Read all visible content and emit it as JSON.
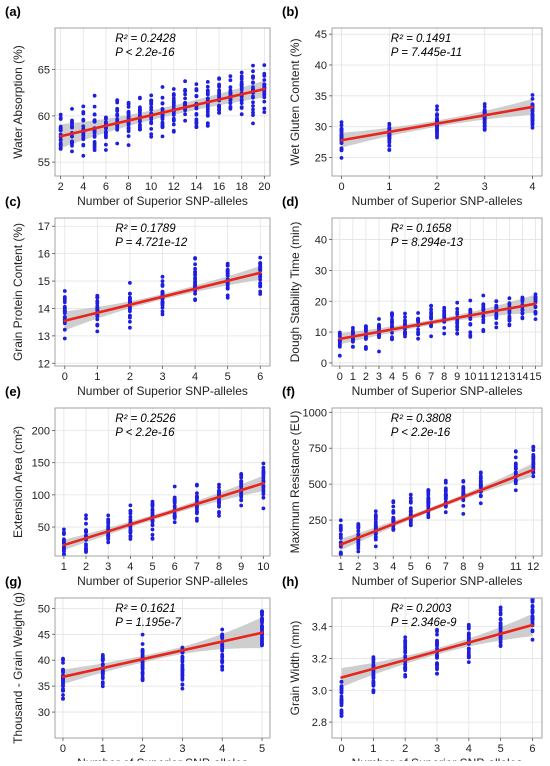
{
  "chart_data": [
    {
      "type": "scatter",
      "panel_label": "(a)",
      "ylabel": "Water Absorption (%)",
      "xlabel": "Number of Superior SNP-alleles",
      "xlim": [
        1.5,
        20.5
      ],
      "ylim": [
        53.5,
        69.5
      ],
      "xticks": [
        2,
        4,
        6,
        8,
        10,
        12,
        14,
        16,
        18,
        20
      ],
      "yticks": [
        55,
        60,
        65
      ],
      "stat_r2": "R² = 0.2428",
      "stat_p": "P < 2.2e-16",
      "fit": {
        "x": [
          2,
          20
        ],
        "y": [
          57.8,
          62.9
        ]
      },
      "band": [
        1.3,
        0.5,
        0.9
      ],
      "points": {
        "xs": [
          2,
          3,
          4,
          5,
          6,
          7,
          8,
          9,
          10,
          11,
          12,
          13,
          14,
          15,
          16,
          17,
          18,
          19,
          20
        ],
        "centers": [
          57.8,
          58.1,
          58.4,
          58.7,
          59.0,
          59.3,
          59.5,
          59.8,
          60.1,
          60.4,
          60.7,
          61.0,
          61.2,
          61.5,
          61.8,
          62.1,
          62.4,
          62.6,
          62.9
        ],
        "spread": 3.8,
        "count": 22,
        "seed": 11
      }
    },
    {
      "type": "scatter",
      "panel_label": "(b)",
      "ylabel": "Wet Gluten Content (%)",
      "xlabel": "Number of Superior SNP-alleles",
      "xlim": [
        -0.2,
        4.2
      ],
      "ylim": [
        22,
        46
      ],
      "xticks": [
        0,
        1,
        2,
        3,
        4
      ],
      "yticks": [
        25,
        30,
        35,
        40,
        45
      ],
      "stat_r2": "R² = 0.1491",
      "stat_p": "P = 7.445e-11",
      "fit": {
        "x": [
          0,
          4
        ],
        "y": [
          27.8,
          33.2
        ]
      },
      "band": [
        1.2,
        0.5,
        1.3
      ],
      "points": {
        "xs": [
          0,
          1,
          2,
          3,
          4
        ],
        "centers": [
          28.0,
          29.0,
          30.3,
          31.6,
          32.8
        ],
        "spread": 4.0,
        "count": 34,
        "seed": 23
      }
    },
    {
      "type": "scatter",
      "panel_label": "(c)",
      "ylabel": "Grain Protein Content (%)",
      "xlabel": "Number of Superior SNP-alleles",
      "xlim": [
        -0.3,
        6.3
      ],
      "ylim": [
        11.9,
        17.3
      ],
      "xticks": [
        0,
        1,
        2,
        3,
        4,
        5,
        6
      ],
      "yticks": [
        12,
        13,
        14,
        15,
        16,
        17
      ],
      "stat_r2": "R² = 0.1789",
      "stat_p": "P = 4.721e-12",
      "fit": {
        "x": [
          0,
          6
        ],
        "y": [
          13.55,
          15.3
        ]
      },
      "band": [
        0.35,
        0.1,
        0.25
      ],
      "points": {
        "xs": [
          0,
          1,
          2,
          3,
          4,
          5,
          6
        ],
        "centers": [
          13.7,
          14.0,
          14.2,
          14.5,
          14.9,
          15.1,
          15.4
        ],
        "spread": 1.2,
        "count": 26,
        "seed": 37
      }
    },
    {
      "type": "scatter",
      "panel_label": "(d)",
      "ylabel": "Dough Stability Time (min)",
      "xlabel": "Number of Superior SNP-alleles",
      "xlim": [
        -0.6,
        15.5
      ],
      "ylim": [
        -1,
        47
      ],
      "xticks": [
        0,
        1,
        2,
        3,
        4,
        5,
        6,
        7,
        8,
        9,
        10,
        11,
        12,
        13,
        14,
        15
      ],
      "yticks": [
        0,
        10,
        20,
        30,
        40
      ],
      "stat_r2": "R² = 0.1658",
      "stat_p": "P = 8.294e-13",
      "fit": {
        "x": [
          0,
          15
        ],
        "y": [
          7.8,
          19.2
        ]
      },
      "band": [
        1.8,
        0.8,
        3.0
      ],
      "points": {
        "xs": [
          0,
          1,
          2,
          3,
          4,
          5,
          6,
          7,
          8,
          9,
          10,
          11,
          12,
          13,
          14,
          15
        ],
        "centers": [
          7,
          8,
          9,
          10,
          11,
          12,
          12,
          13,
          14,
          14,
          15,
          16,
          16,
          17,
          18,
          19
        ],
        "spread": 8.0,
        "count": 16,
        "seed": 41
      }
    },
    {
      "type": "scatter",
      "panel_label": "(e)",
      "ylabel": "Extension Area (cm²)",
      "xlabel": "Number of Superior SNP-alleles",
      "xlim": [
        0.6,
        10.3
      ],
      "ylim": [
        5,
        235
      ],
      "xticks": [
        1,
        2,
        3,
        4,
        5,
        6,
        7,
        8,
        9,
        10
      ],
      "yticks": [
        50,
        100,
        150,
        200
      ],
      "stat_r2": "R² = 0.2526",
      "stat_p": "P < 2.2e-16",
      "fit": {
        "x": [
          1,
          10
        ],
        "y": [
          22,
          118
        ]
      },
      "band": [
        8,
        4,
        12
      ],
      "points": {
        "xs": [
          1,
          2,
          3,
          4,
          5,
          6,
          7,
          8,
          9,
          10
        ],
        "centers": [
          25,
          35,
          45,
          55,
          65,
          75,
          85,
          95,
          110,
          118
        ],
        "spread": 45,
        "count": 22,
        "seed": 53
      }
    },
    {
      "type": "scatter",
      "panel_label": "(f)",
      "ylabel": "Maximum Resistance (EU)",
      "xlabel": "Number of Superior SNP-alleles",
      "xlim": [
        0.5,
        12.5
      ],
      "ylim": [
        0,
        1030
      ],
      "xticks": [
        1,
        2,
        3,
        4,
        5,
        6,
        7,
        8,
        9,
        11,
        12
      ],
      "xtick_pos": [
        1,
        2,
        3,
        4,
        5,
        6,
        7,
        8,
        9,
        11,
        12
      ],
      "yticks": [
        250,
        500,
        750,
        1000
      ],
      "stat_r2": "R² = 0.3808",
      "stat_p": "P < 2.2e-16",
      "fit": {
        "x": [
          1,
          12
        ],
        "y": [
          80,
          600
        ]
      },
      "band": [
        40,
        15,
        45
      ],
      "points": {
        "xs": [
          1,
          2,
          3,
          4,
          5,
          6,
          7,
          8,
          9,
          11,
          12
        ],
        "centers": [
          110,
          160,
          210,
          260,
          310,
          360,
          400,
          440,
          490,
          590,
          640
        ],
        "spread": 170,
        "count": 24,
        "seed": 67
      }
    },
    {
      "type": "scatter",
      "panel_label": "(g)",
      "ylabel": "Thousand - Grain Weight (g)",
      "xlabel": "Number of Superior SNP-alleles",
      "xlim": [
        -0.2,
        5.2
      ],
      "ylim": [
        25,
        52
      ],
      "xticks": [
        0,
        1,
        2,
        3,
        4,
        5
      ],
      "yticks": [
        30,
        35,
        40,
        45,
        50
      ],
      "stat_r2": "R² = 0.1621",
      "stat_p": "P = 1.195e-7",
      "fit": {
        "x": [
          0,
          5
        ],
        "y": [
          36.8,
          45.3
        ]
      },
      "band": [
        1.4,
        0.6,
        3.0
      ],
      "points": {
        "xs": [
          0,
          1,
          2,
          3,
          4,
          5
        ],
        "centers": [
          36.5,
          38.5,
          39.5,
          39.0,
          42.0,
          46.0
        ],
        "spread": 6.5,
        "count": 30,
        "seed": 79
      }
    },
    {
      "type": "scatter",
      "panel_label": "(h)",
      "ylabel": "Grain Width (mm)",
      "xlabel": "Number of Superior SNP-alleles",
      "xlim": [
        -0.3,
        6.3
      ],
      "ylim": [
        2.7,
        3.58
      ],
      "xticks": [
        0,
        1,
        2,
        3,
        4,
        5,
        6
      ],
      "yticks": [
        2.8,
        3.0,
        3.2,
        3.4
      ],
      "stat_r2": "R² = 0.2003",
      "stat_p": "P = 2.346e-9",
      "fit": {
        "x": [
          0,
          6
        ],
        "y": [
          3.08,
          3.41
        ]
      },
      "band": [
        0.06,
        0.02,
        0.07
      ],
      "points": {
        "xs": [
          0,
          1,
          2,
          3,
          4,
          5,
          6
        ],
        "centers": [
          2.95,
          3.12,
          3.2,
          3.22,
          3.3,
          3.38,
          3.48
        ],
        "spread": 0.22,
        "count": 26,
        "seed": 97
      }
    }
  ],
  "colors": {
    "points": "#1e1edf",
    "fit": "#e8251d",
    "band": "#bdbdbd",
    "grid": "#e3e3e3",
    "axis": "#9a9a9a",
    "text": "#222222"
  }
}
